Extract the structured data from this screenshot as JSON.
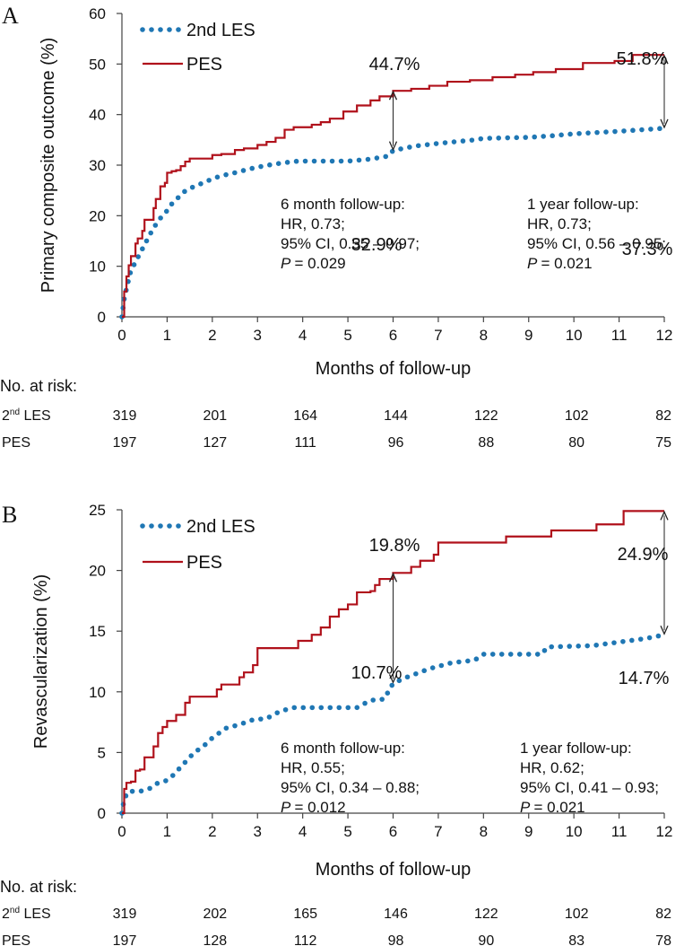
{
  "chart_data": [
    {
      "panel": "A",
      "type": "line",
      "ylabel": "Primary composite outcome (%)",
      "xlabel": "Months of follow-up",
      "ylim": [
        0,
        60
      ],
      "xlim": [
        0,
        12
      ],
      "yticks": [
        "0",
        "10",
        "20",
        "30",
        "40",
        "50",
        "60"
      ],
      "xticks": [
        "0",
        "1",
        "2",
        "3",
        "4",
        "5",
        "6",
        "7",
        "8",
        "9",
        "10",
        "11",
        "12"
      ],
      "legend": [
        "2nd LES",
        "PES"
      ],
      "legend_position": "top-left",
      "series": [
        {
          "name": "2nd LES",
          "style": "dotted",
          "color": "#1f77b4",
          "x": [
            0,
            0.05,
            0.1,
            0.15,
            0.2,
            0.3,
            0.4,
            0.5,
            0.6,
            0.7,
            0.8,
            0.9,
            1.0,
            1.1,
            1.2,
            1.4,
            1.6,
            1.8,
            2.0,
            2.2,
            2.5,
            2.8,
            3.0,
            3.3,
            3.6,
            3.9,
            4.2,
            5.0,
            5.5,
            5.9,
            6.0,
            6.5,
            7.0,
            7.8,
            8.0,
            9.0,
            9.5,
            10.0,
            11.0,
            12.0
          ],
          "y": [
            0,
            3.5,
            5.5,
            7.4,
            9.2,
            10.8,
            12.6,
            14.2,
            16.0,
            17.5,
            19.0,
            20.0,
            21.0,
            22.3,
            23.2,
            24.9,
            25.8,
            26.5,
            27.3,
            27.9,
            28.5,
            29.2,
            29.6,
            30.1,
            30.5,
            30.8,
            30.8,
            30.8,
            31.2,
            31.8,
            32.9,
            33.8,
            34.3,
            35.0,
            35.3,
            35.5,
            35.8,
            36.2,
            36.7,
            37.3
          ]
        },
        {
          "name": "PES",
          "style": "solid",
          "color": "#b0111b",
          "x": [
            0,
            0.05,
            0.1,
            0.15,
            0.2,
            0.3,
            0.35,
            0.45,
            0.5,
            0.6,
            0.7,
            0.75,
            0.85,
            0.95,
            1.0,
            1.1,
            1.2,
            1.3,
            1.4,
            1.5,
            1.6,
            2.0,
            2.2,
            2.5,
            2.7,
            3.0,
            3.2,
            3.4,
            3.6,
            3.8,
            4.0,
            4.2,
            4.4,
            4.6,
            4.9,
            5.2,
            5.5,
            5.7,
            6.0,
            6.4,
            6.8,
            7.2,
            7.7,
            8.2,
            8.7,
            9.1,
            9.6,
            10.2,
            10.9,
            11.3,
            12.0
          ],
          "y": [
            0,
            5.0,
            8.0,
            10.2,
            12.0,
            14.5,
            15.5,
            17.0,
            19.2,
            19.2,
            21.5,
            23.3,
            25.8,
            26.5,
            28.5,
            28.8,
            29.0,
            29.8,
            30.7,
            31.3,
            31.3,
            32.0,
            32.2,
            33.0,
            33.3,
            34.0,
            34.6,
            35.4,
            37.0,
            37.5,
            37.5,
            38.0,
            38.5,
            39.2,
            40.6,
            41.8,
            42.8,
            43.6,
            44.7,
            45.1,
            45.7,
            46.5,
            46.8,
            47.4,
            47.9,
            48.4,
            49.0,
            50.2,
            50.6,
            51.8,
            51.8
          ]
        }
      ],
      "annotations": {
        "pct_6m_pes": "44.7%",
        "pct_6m_les": "32.9%",
        "pct_12m_pes": "51.8%",
        "pct_12m_les": "37.3%",
        "values": {
          "pes_6m": 44.7,
          "les_6m": 32.9,
          "pes_12m": 51.8,
          "les_12m": 37.3
        },
        "stats_6m": [
          "6 month follow-up:",
          "HR, 0.73;",
          "95% CI, 0.55 – 0.97;",
          "= 0.029"
        ],
        "stats_12m": [
          "1 year follow-up:",
          "HR, 0.73;",
          "95% CI, 0.56 – 0.95;",
          "= 0.021"
        ],
        "p_symbol": "P"
      },
      "risk_table": {
        "header": "No. at risk:",
        "rows": [
          {
            "label_main": "2",
            "label_sup": "nd",
            "label_rest": " LES",
            "values": [
              "319",
              "201",
              "164",
              "144",
              "122",
              "102",
              "82"
            ]
          },
          {
            "label_main": "PES",
            "label_sup": "",
            "label_rest": "",
            "values": [
              "197",
              "127",
              "111",
              "96",
              "88",
              "80",
              "75"
            ]
          }
        ],
        "months": [
          0,
          2,
          4,
          6,
          8,
          10,
          12
        ]
      }
    },
    {
      "panel": "B",
      "type": "line",
      "ylabel": "Revascularization (%)",
      "xlabel": "Months of follow-up",
      "ylim": [
        0,
        25
      ],
      "xlim": [
        0,
        12
      ],
      "yticks": [
        "0",
        "5",
        "10",
        "15",
        "20",
        "25"
      ],
      "xticks": [
        "0",
        "1",
        "2",
        "3",
        "4",
        "5",
        "6",
        "7",
        "8",
        "9",
        "10",
        "11",
        "12"
      ],
      "legend": [
        "2nd LES",
        "PES"
      ],
      "legend_position": "top-left",
      "series": [
        {
          "name": "2nd LES",
          "style": "dotted",
          "color": "#1f77b4",
          "x": [
            0,
            0.05,
            0.15,
            0.4,
            0.6,
            0.8,
            1.0,
            1.1,
            1.2,
            1.4,
            1.6,
            1.8,
            2.0,
            2.3,
            2.6,
            2.9,
            3.2,
            3.5,
            3.8,
            4.5,
            5.2,
            5.5,
            5.8,
            6.0,
            6.3,
            6.8,
            7.3,
            7.8,
            8.0,
            9.3,
            9.4,
            10.4,
            11.0,
            11.6,
            12.0
          ],
          "y": [
            0,
            1.2,
            1.8,
            1.8,
            2.0,
            2.5,
            2.7,
            3.0,
            3.4,
            4.2,
            5.0,
            5.5,
            6.2,
            7.0,
            7.3,
            7.7,
            7.8,
            8.4,
            8.7,
            8.7,
            8.7,
            9.3,
            9.4,
            10.7,
            11.2,
            11.9,
            12.4,
            12.6,
            13.1,
            13.1,
            13.7,
            13.8,
            14.1,
            14.4,
            14.7
          ]
        },
        {
          "name": "PES",
          "style": "solid",
          "color": "#b0111b",
          "x": [
            0,
            0.05,
            0.1,
            0.2,
            0.3,
            0.4,
            0.5,
            0.6,
            0.7,
            0.8,
            0.9,
            1.0,
            1.2,
            1.3,
            1.4,
            1.5,
            2.0,
            2.1,
            2.2,
            2.5,
            2.6,
            2.7,
            2.9,
            3.0,
            3.8,
            3.9,
            4.0,
            4.2,
            4.4,
            4.6,
            4.8,
            5.0,
            5.2,
            5.5,
            5.6,
            5.7,
            6.0,
            6.1,
            6.4,
            6.6,
            6.9,
            7.0,
            8.4,
            8.5,
            9.4,
            9.5,
            10.4,
            10.5,
            11.0,
            11.1,
            12.0
          ],
          "y": [
            0,
            2.0,
            2.5,
            2.6,
            3.5,
            3.6,
            4.6,
            4.6,
            5.5,
            6.6,
            7.1,
            7.6,
            8.1,
            8.1,
            9.1,
            9.6,
            9.6,
            10.2,
            10.6,
            10.6,
            11.2,
            11.6,
            12.2,
            13.6,
            13.6,
            14.2,
            14.2,
            14.7,
            15.3,
            16.2,
            16.8,
            17.2,
            18.2,
            18.3,
            18.8,
            19.3,
            19.8,
            19.8,
            20.3,
            20.8,
            21.3,
            22.3,
            22.3,
            22.8,
            22.8,
            23.3,
            23.3,
            23.8,
            23.8,
            24.9,
            24.9
          ]
        }
      ],
      "annotations": {
        "pct_6m_pes": "19.8%",
        "pct_6m_les": "10.7%",
        "pct_12m_pes": "24.9%",
        "pct_12m_les": "14.7%",
        "values": {
          "pes_6m": 19.8,
          "les_6m": 10.7,
          "pes_12m": 24.9,
          "les_12m": 14.7
        },
        "stats_6m": [
          "6 month follow-up:",
          "HR, 0.55;",
          "95% CI, 0.34 – 0.88;",
          "= 0.012"
        ],
        "stats_12m": [
          "1 year follow-up:",
          "HR, 0.62;",
          "95% CI, 0.41 – 0.93;",
          "= 0.021"
        ],
        "p_symbol": "P"
      },
      "risk_table": {
        "header": "No. at risk:",
        "rows": [
          {
            "label_main": "2",
            "label_sup": "nd",
            "label_rest": " LES",
            "values": [
              "319",
              "202",
              "165",
              "146",
              "122",
              "102",
              "82"
            ]
          },
          {
            "label_main": "PES",
            "label_sup": "",
            "label_rest": "",
            "values": [
              "197",
              "128",
              "112",
              "98",
              "90",
              "83",
              "78"
            ]
          }
        ],
        "months": [
          0,
          2,
          4,
          6,
          8,
          10,
          12
        ]
      }
    }
  ],
  "panels": [
    "A",
    "B"
  ]
}
